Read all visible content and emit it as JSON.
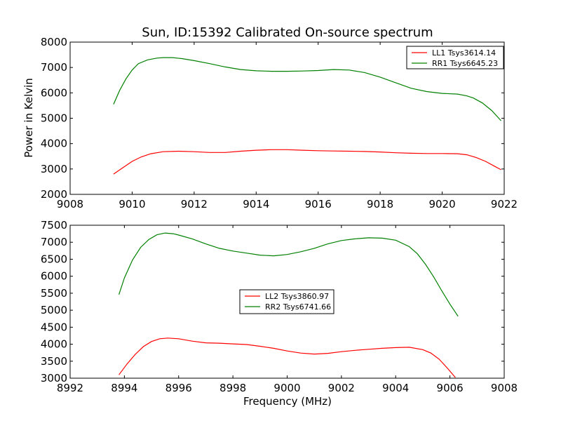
{
  "chart_data": {
    "title": "Sun, ID:15392 Calibrated On-source spectrum",
    "xlabel": "Frequency (MHz)",
    "ylabel": "Power in Kelvin",
    "panels": [
      {
        "type": "line",
        "xlim": [
          9008,
          9022
        ],
        "ylim": [
          2000,
          8000
        ],
        "xticks": [
          "9008",
          "9010",
          "9012",
          "9014",
          "9016",
          "9018",
          "9020",
          "9022"
        ],
        "yticks": [
          "2000",
          "3000",
          "4000",
          "5000",
          "6000",
          "7000",
          "8000"
        ],
        "legend_position": "top-right",
        "series": [
          {
            "name": "LL1 Tsys3614.14",
            "color": "#ff0000",
            "x": [
              9009.4,
              9009.7,
              9010.0,
              9010.3,
              9010.6,
              9011.0,
              9011.5,
              9012.0,
              9012.5,
              9013.0,
              9013.5,
              9014.0,
              9014.5,
              9015.0,
              9015.5,
              9016.0,
              9016.5,
              9017.0,
              9017.5,
              9018.0,
              9018.5,
              9019.0,
              9019.5,
              9020.0,
              9020.5,
              9020.8,
              9021.1,
              9021.4,
              9021.7,
              9021.9
            ],
            "y": [
              2800,
              3050,
              3300,
              3480,
              3600,
              3680,
              3700,
              3680,
              3650,
              3650,
              3700,
              3740,
              3760,
              3760,
              3740,
              3720,
              3710,
              3700,
              3690,
              3670,
              3640,
              3620,
              3610,
              3610,
              3600,
              3560,
              3450,
              3300,
              3100,
              2970
            ]
          },
          {
            "name": "RR1 Tsys6645.23",
            "color": "#008000",
            "x": [
              9009.4,
              9009.6,
              9009.8,
              9010.0,
              9010.2,
              9010.5,
              9010.8,
              9011.0,
              9011.3,
              9011.6,
              9012.0,
              9012.5,
              9013.0,
              9013.5,
              9014.0,
              9014.5,
              9015.0,
              9015.5,
              9016.0,
              9016.5,
              9017.0,
              9017.5,
              9018.0,
              9018.5,
              9019.0,
              9019.5,
              9020.0,
              9020.5,
              9020.8,
              9021.0,
              9021.3,
              9021.6,
              9021.9
            ],
            "y": [
              5550,
              6100,
              6550,
              6900,
              7150,
              7300,
              7370,
              7390,
              7390,
              7350,
              7270,
              7150,
              7020,
              6920,
              6870,
              6850,
              6850,
              6860,
              6880,
              6920,
              6900,
              6800,
              6620,
              6400,
              6180,
              6050,
              5980,
              5950,
              5880,
              5800,
              5600,
              5300,
              4900
            ]
          }
        ]
      },
      {
        "type": "line",
        "xlim": [
          8992,
          9008
        ],
        "ylim": [
          3000,
          7500
        ],
        "xticks": [
          "8992",
          "8994",
          "8996",
          "8998",
          "9000",
          "9002",
          "9004",
          "9006",
          "9008"
        ],
        "yticks": [
          "3000",
          "3500",
          "4000",
          "4500",
          "5000",
          "5500",
          "6000",
          "6500",
          "7000",
          "7500"
        ],
        "legend_position": "center",
        "series": [
          {
            "name": "LL2 Tsys3860.97",
            "color": "#ff0000",
            "x": [
              8993.8,
              8994.1,
              8994.4,
              8994.7,
              8995.0,
              8995.3,
              8995.6,
              8996.0,
              8996.5,
              8997.0,
              8997.5,
              8998.0,
              8998.5,
              8999.0,
              8999.5,
              9000.0,
              9000.5,
              9001.0,
              9001.5,
              9002.0,
              9002.5,
              9003.0,
              9003.5,
              9004.0,
              9004.5,
              9005.0,
              9005.3,
              9005.6,
              9005.9,
              9006.2
            ],
            "y": [
              3100,
              3420,
              3700,
              3930,
              4080,
              4160,
              4180,
              4160,
              4090,
              4040,
              4030,
              4010,
              3990,
              3940,
              3880,
              3800,
              3740,
              3710,
              3730,
              3780,
              3820,
              3850,
              3880,
              3900,
              3910,
              3840,
              3740,
              3560,
              3300,
              3020
            ]
          },
          {
            "name": "RR2 Tsys6741.66",
            "color": "#008000",
            "x": [
              8993.8,
              8994.0,
              8994.3,
              8994.6,
              8994.9,
              8995.2,
              8995.5,
              8995.8,
              8996.0,
              8996.5,
              8997.0,
              8997.5,
              8998.0,
              8998.5,
              8999.0,
              8999.5,
              9000.0,
              9000.5,
              9001.0,
              9001.5,
              9002.0,
              9002.5,
              9003.0,
              9003.5,
              9004.0,
              9004.5,
              9004.8,
              9005.1,
              9005.4,
              9005.7,
              9006.0,
              9006.3
            ],
            "y": [
              5460,
              5950,
              6480,
              6850,
              7080,
              7220,
              7270,
              7250,
              7210,
              7100,
              6950,
              6820,
              6740,
              6680,
              6620,
              6600,
              6640,
              6720,
              6820,
              6950,
              7050,
              7100,
              7130,
              7120,
              7060,
              6870,
              6660,
              6350,
              5980,
              5570,
              5180,
              4820
            ]
          }
        ]
      }
    ]
  }
}
